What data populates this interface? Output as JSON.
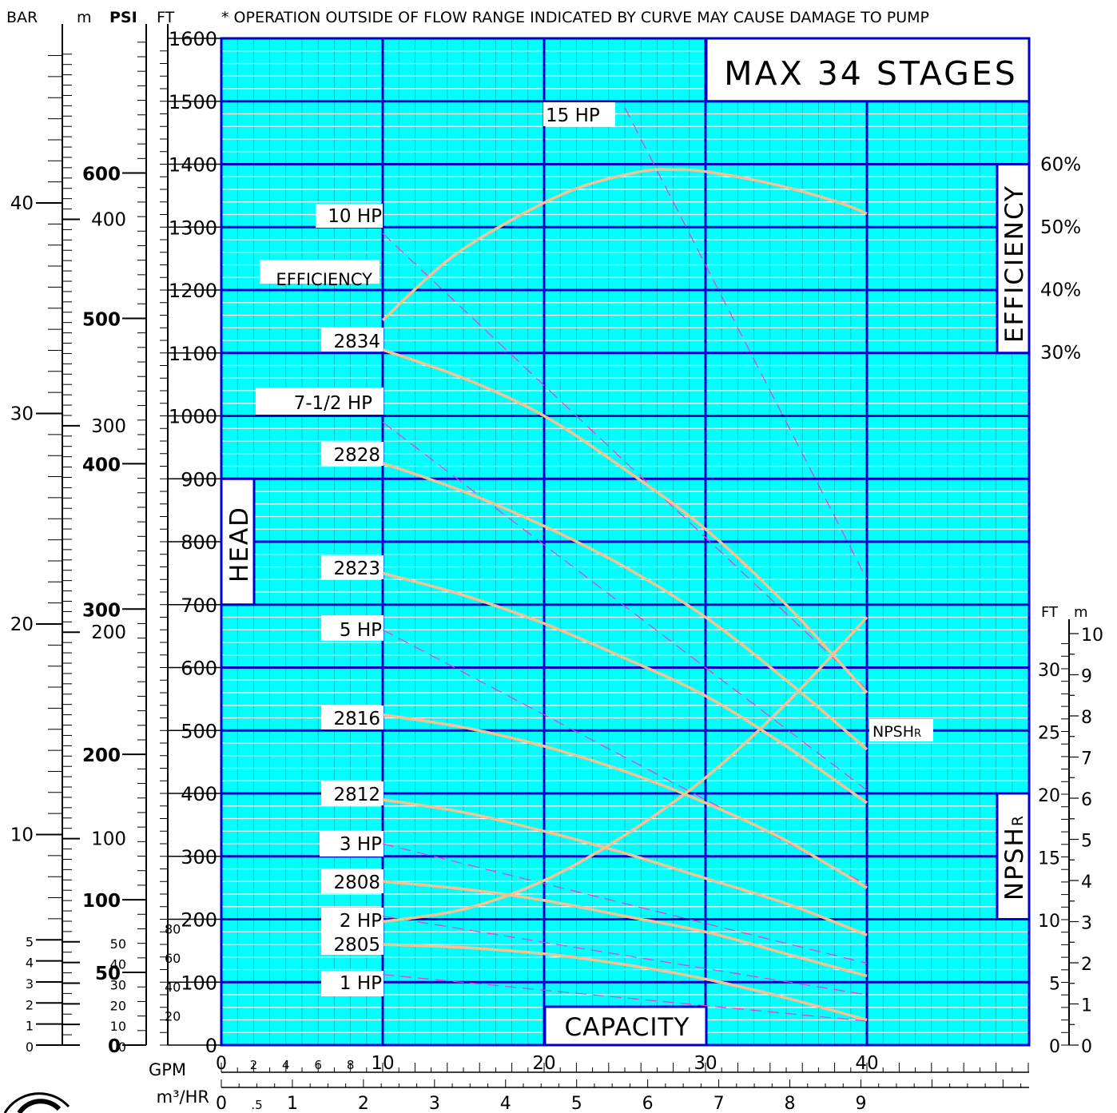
{
  "chart_data": {
    "type": "line",
    "note": "* OPERATION OUTSIDE OF FLOW RANGE INDICATED BY CURVE MAY CAUSE DAMAGE TO PUMP",
    "title_box": "MAX 34 STAGES",
    "head_label": "HEAD",
    "capacity_label": "CAPACITY",
    "efficiency_label": "EFFICIENCY",
    "npsh_label": "NPSHR",
    "x_axis": {
      "unit": "GPM",
      "range": [
        0,
        50
      ],
      "ticks_major": [
        "10",
        "20",
        "30",
        "40"
      ],
      "ticks_minor": [
        "0",
        "2",
        "4",
        "6",
        "8"
      ]
    },
    "x_axis_m3hr": {
      "unit": "m³/HR",
      "labels": [
        "0",
        ".5",
        "1",
        "2",
        "3",
        "4",
        "5",
        "6",
        "7",
        "8",
        "9"
      ]
    },
    "y_axis_ft": {
      "unit": "FT",
      "range": [
        0,
        1600
      ],
      "labels": [
        "0",
        "100",
        "200",
        "300",
        "400",
        "500",
        "600",
        "700",
        "800",
        "900",
        "1000",
        "1100",
        "1200",
        "1300",
        "1400",
        "1500",
        "1600"
      ]
    },
    "scale_bar": {
      "unit": "BAR",
      "labels": [
        "0",
        "1",
        "2",
        "3",
        "4",
        "5",
        "10",
        "20",
        "30",
        "40"
      ]
    },
    "scale_m": {
      "unit": "m",
      "labels": [
        "0",
        "10",
        "20",
        "30",
        "40",
        "50",
        "100",
        "200",
        "300",
        "400"
      ]
    },
    "scale_psi": {
      "unit": "PSI",
      "labels": [
        "0",
        "50",
        "100",
        "200",
        "300",
        "400",
        "500",
        "600"
      ]
    },
    "scale_psi_small": [
      "20",
      "40",
      "60",
      "80"
    ],
    "efficiency_axis": {
      "labels": [
        "30%",
        "40%",
        "50%",
        "60%"
      ]
    },
    "npsh_axis_ft": {
      "unit": "FT",
      "labels": [
        "0",
        "5",
        "10",
        "15",
        "20",
        "25",
        "30"
      ]
    },
    "npsh_axis_m": {
      "unit": "m",
      "labels": [
        "0",
        "1",
        "2",
        "3",
        "4",
        "5",
        "6",
        "7",
        "8",
        "9",
        "10"
      ]
    },
    "pump_curves": [
      {
        "name": "2834",
        "x": [
          10,
          15,
          20,
          25,
          30,
          35,
          40
        ],
        "y": [
          1105,
          1060,
          1000,
          915,
          820,
          700,
          560
        ]
      },
      {
        "name": "2828",
        "x": [
          10,
          15,
          20,
          25,
          30,
          35,
          40
        ],
        "y": [
          925,
          880,
          825,
          760,
          680,
          580,
          470
        ]
      },
      {
        "name": "2823",
        "x": [
          10,
          15,
          20,
          25,
          30,
          35,
          40
        ],
        "y": [
          750,
          715,
          670,
          615,
          555,
          475,
          385
        ]
      },
      {
        "name": "2816",
        "x": [
          10,
          15,
          20,
          25,
          30,
          35,
          40
        ],
        "y": [
          525,
          505,
          475,
          435,
          385,
          325,
          250
        ]
      },
      {
        "name": "2812",
        "x": [
          10,
          15,
          20,
          25,
          30,
          35,
          40
        ],
        "y": [
          390,
          370,
          340,
          305,
          265,
          225,
          175
        ]
      },
      {
        "name": "2808",
        "x": [
          10,
          15,
          20,
          25,
          30,
          35,
          40
        ],
        "y": [
          260,
          248,
          230,
          205,
          180,
          145,
          110
        ]
      },
      {
        "name": "2805",
        "x": [
          10,
          15,
          20,
          25,
          30,
          35,
          40
        ],
        "y": [
          160,
          155,
          145,
          128,
          105,
          75,
          40
        ]
      }
    ],
    "efficiency_curve": {
      "name": "EFFICIENCY",
      "x": [
        10,
        14,
        18,
        22,
        26,
        28,
        30,
        34,
        38,
        40
      ],
      "y": [
        35,
        44.5,
        51,
        56,
        58.7,
        59,
        58.7,
        56.8,
        54,
        52
      ]
    },
    "npshr_curve": {
      "name": "NPSHR",
      "x": [
        10,
        15,
        20,
        25,
        30,
        35,
        40
      ],
      "y": [
        3.0,
        3.3,
        4.0,
        5.1,
        6.5,
        8.3,
        10.4
      ]
    },
    "hp_lines": [
      {
        "name": "15 HP",
        "x": [
          25,
          40
        ],
        "y": [
          1490,
          740
        ]
      },
      {
        "name": "10 HP",
        "x": [
          10,
          40
        ],
        "y": [
          1290,
          565
        ]
      },
      {
        "name": "7-1/2 HP",
        "x": [
          10,
          40
        ],
        "y": [
          990,
          405
        ]
      },
      {
        "name": "5 HP",
        "x": [
          10,
          40
        ],
        "y": [
          660,
          255
        ]
      },
      {
        "name": "3 HP",
        "x": [
          10,
          40
        ],
        "y": [
          320,
          130
        ]
      },
      {
        "name": "2 HP",
        "x": [
          10,
          40
        ],
        "y": [
          205,
          80
        ]
      },
      {
        "name": "1 HP",
        "x": [
          10,
          40
        ],
        "y": [
          112,
          38
        ]
      }
    ],
    "colors": {
      "grid_fill": "#00ffff",
      "grid_fine": "#00b8b8",
      "grid_major": "#0000cc",
      "curve": "#f7c290",
      "hp_dash": "#ff33cc"
    }
  }
}
